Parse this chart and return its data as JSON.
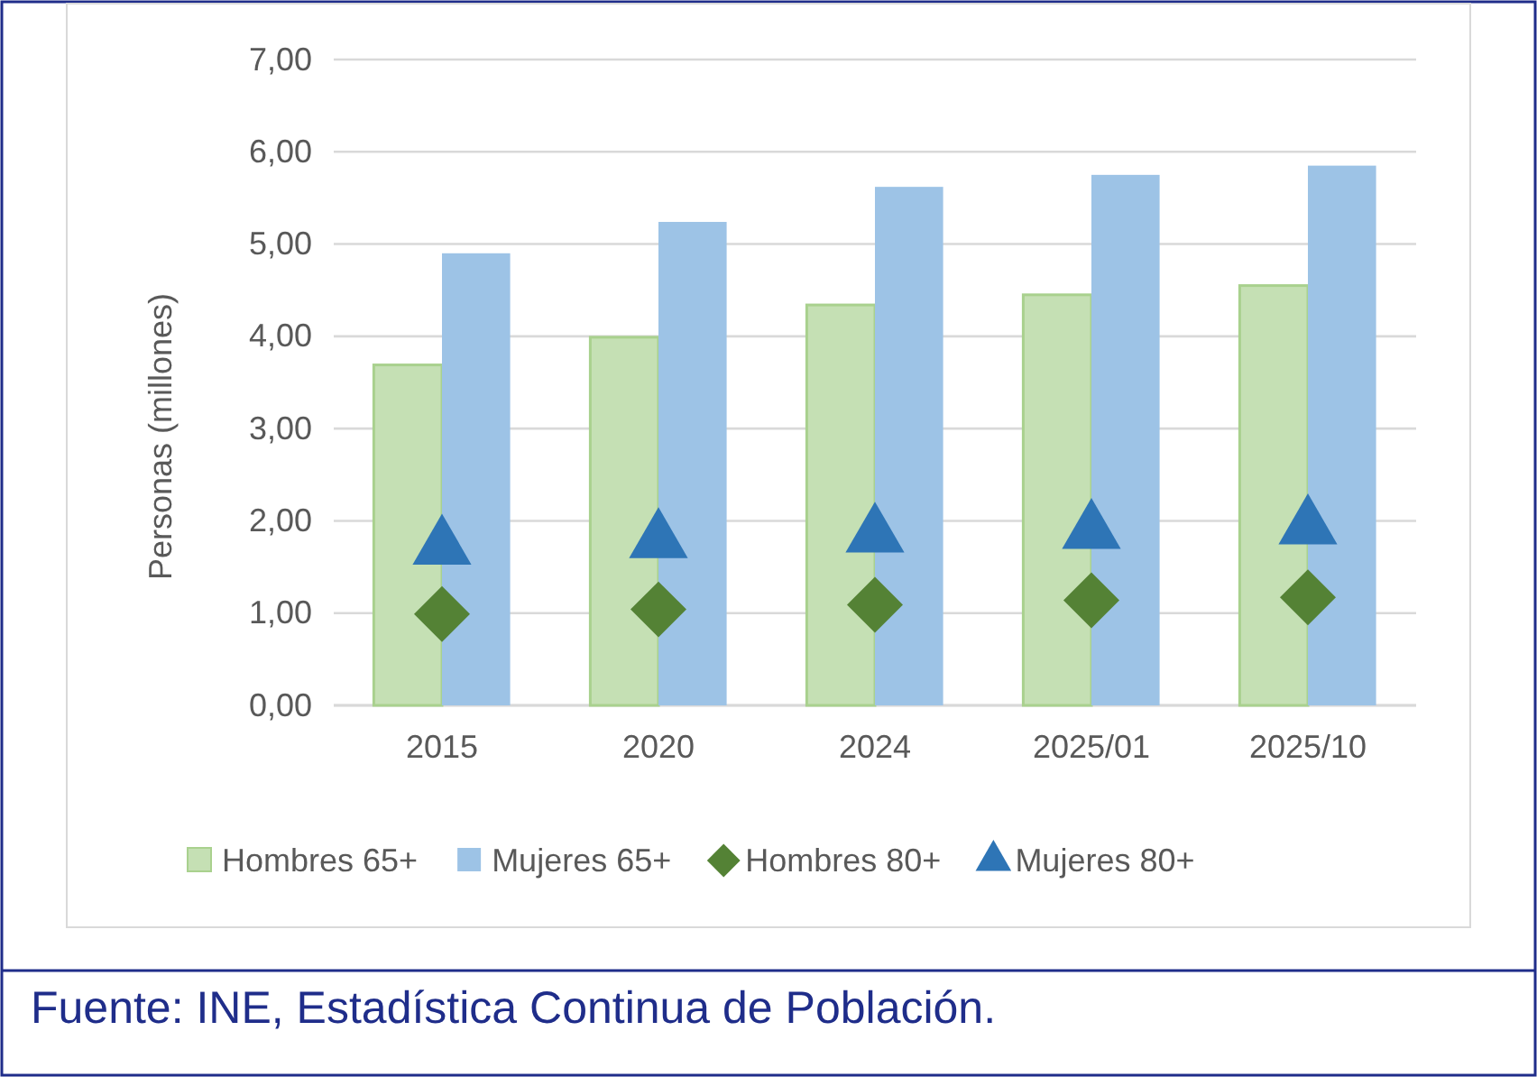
{
  "chart_data": {
    "type": "bar",
    "ylabel": "Personas (millones)",
    "categories": [
      "2015",
      "2020",
      "2024",
      "2025/01",
      "2025/10"
    ],
    "ylim": [
      0,
      7
    ],
    "yticks": [
      {
        "value": 0,
        "label": "0,00"
      },
      {
        "value": 1,
        "label": "1,00"
      },
      {
        "value": 2,
        "label": "2,00"
      },
      {
        "value": 3,
        "label": "3,00"
      },
      {
        "value": 4,
        "label": "4,00"
      },
      {
        "value": 5,
        "label": "5,00"
      },
      {
        "value": 6,
        "label": "6,00"
      },
      {
        "value": 7,
        "label": "7,00"
      }
    ],
    "grid": "y",
    "legend": "bottom",
    "series": [
      {
        "name": "Hombres 65+",
        "color": "#c5e0b4",
        "values": [
          3.69,
          3.99,
          4.34,
          4.45,
          4.55
        ]
      },
      {
        "name": "Mujeres 65+",
        "color": "#9dc3e6",
        "values": [
          4.9,
          5.24,
          5.62,
          5.75,
          5.85
        ]
      },
      {
        "name": "Hombres 80+",
        "type": "scatter",
        "marker": "diamond",
        "color": "#548235",
        "values": [
          0.99,
          1.04,
          1.09,
          1.14,
          1.17
        ]
      },
      {
        "name": "Mujeres 80+",
        "type": "scatter",
        "marker": "triangle",
        "color": "#2e75b6",
        "values": [
          1.71,
          1.78,
          1.84,
          1.88,
          1.93
        ]
      }
    ],
    "annotations": [
      "Fuente: INE, Estadística Continua de Población."
    ]
  }
}
